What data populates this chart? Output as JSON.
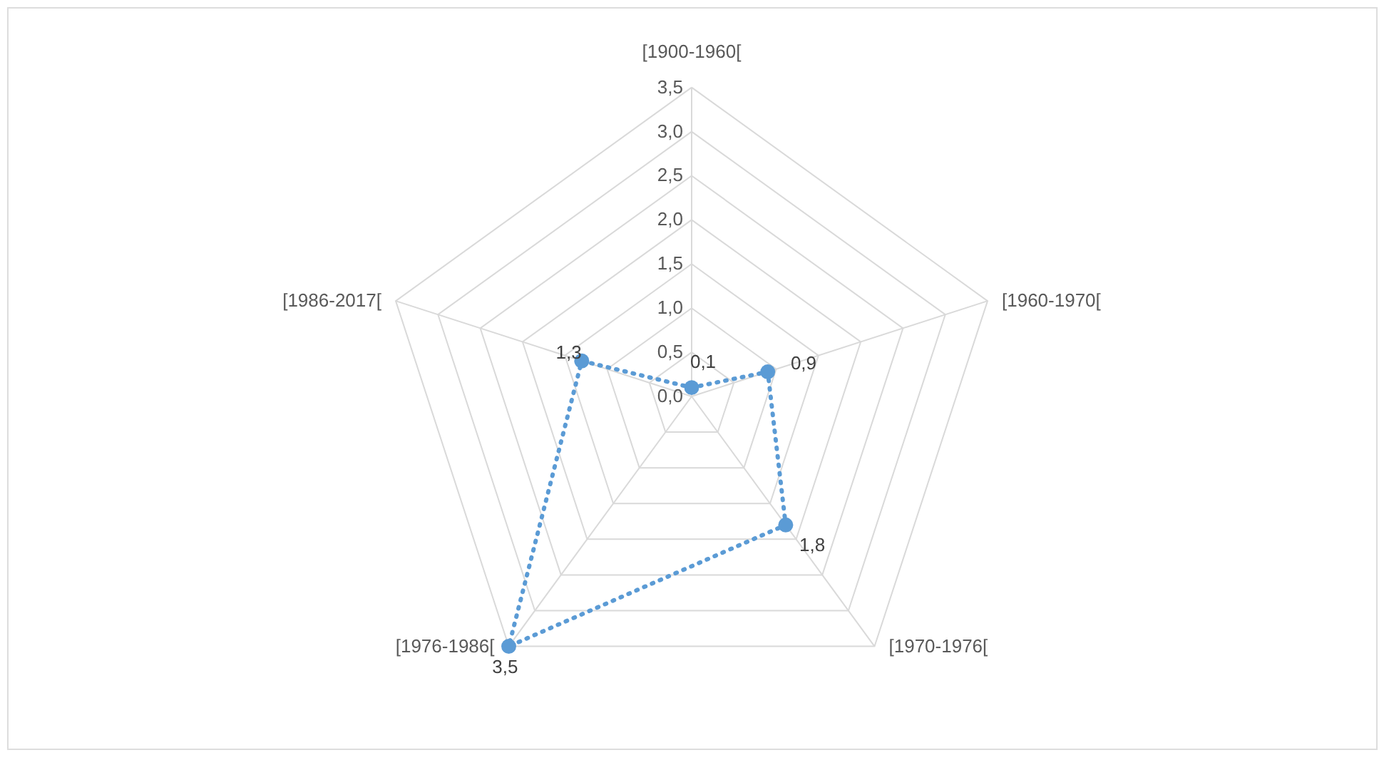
{
  "chart_data": {
    "type": "radar",
    "categories": [
      "[1900-1960[",
      "[1960-1970[",
      "[1970-1976[",
      "[1976-1986[",
      "[1986-2017["
    ],
    "series": [
      {
        "color": "#5b9bd5",
        "values": [
          0.1,
          0.9,
          1.8,
          3.5,
          1.3
        ],
        "value_labels": [
          "0,1",
          "0,9",
          "1,8",
          "3,5",
          "1,3"
        ]
      }
    ],
    "ylim": [
      0,
      3.5
    ],
    "yticks": [
      {
        "value": 0,
        "label": "0,0"
      },
      {
        "value": 0.5,
        "label": "0,5"
      },
      {
        "value": 1,
        "label": "1,0"
      },
      {
        "value": 1.5,
        "label": "1,5"
      },
      {
        "value": 2,
        "label": "2,0"
      },
      {
        "value": 2.5,
        "label": "2,5"
      },
      {
        "value": 3,
        "label": "3,0"
      },
      {
        "value": 3.5,
        "label": "3,5"
      }
    ],
    "grid": true,
    "marker": "circle",
    "line_style": "dotted"
  }
}
